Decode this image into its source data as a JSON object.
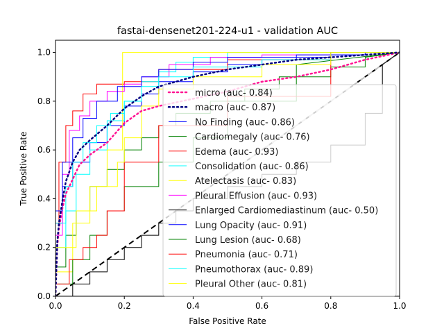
{
  "chart_data": {
    "type": "line",
    "title": "fastai-densenet201-224-u1 - validation AUC",
    "xlabel": "False Positive Rate",
    "ylabel": "True Positive Rate",
    "xlim": [
      0,
      1
    ],
    "ylim": [
      0,
      1.05
    ],
    "xticks": [
      "0.0",
      "0.2",
      "0.4",
      "0.6",
      "0.8",
      "1.0"
    ],
    "yticks": [
      "0.0",
      "0.2",
      "0.4",
      "0.6",
      "0.8",
      "1.0"
    ],
    "grid": false,
    "legend_position": "lower-right",
    "series": [
      {
        "name": "micro (auc- 0.84)",
        "color": "#ff1493",
        "style": "dotted",
        "x": [
          0,
          0.005,
          0.01,
          0.02,
          0.03,
          0.05,
          0.07,
          0.1,
          0.15,
          0.2,
          0.25,
          0.3,
          0.4,
          0.5,
          0.6,
          0.7,
          0.8,
          0.9,
          1.0
        ],
        "y": [
          0,
          0.2,
          0.28,
          0.36,
          0.42,
          0.48,
          0.54,
          0.58,
          0.63,
          0.71,
          0.76,
          0.78,
          0.81,
          0.84,
          0.88,
          0.9,
          0.93,
          0.97,
          1.0
        ]
      },
      {
        "name": "macro (auc- 0.87)",
        "color": "#000080",
        "style": "dotted",
        "x": [
          0,
          0.005,
          0.01,
          0.02,
          0.03,
          0.05,
          0.07,
          0.1,
          0.15,
          0.2,
          0.25,
          0.3,
          0.4,
          0.5,
          0.6,
          0.7,
          0.8,
          0.9,
          1.0
        ],
        "y": [
          0,
          0.22,
          0.3,
          0.39,
          0.47,
          0.55,
          0.6,
          0.64,
          0.7,
          0.77,
          0.82,
          0.86,
          0.9,
          0.93,
          0.95,
          0.97,
          0.98,
          0.99,
          1.0
        ]
      },
      {
        "name": "No Finding (auc- 0.86)",
        "color": "#0000ff",
        "style": "solid",
        "x": [
          0,
          0,
          0.02,
          0.02,
          0.05,
          0.05,
          0.1,
          0.1,
          0.15,
          0.15,
          0.2,
          0.2,
          0.25,
          0.25,
          0.3,
          0.3,
          0.4,
          0.4,
          0.5,
          0.5,
          0.6,
          0.6,
          0.7,
          0.7,
          0.8,
          0.8,
          0.9,
          0.9,
          1.0
        ],
        "y": [
          0,
          0.3,
          0.3,
          0.45,
          0.45,
          0.55,
          0.55,
          0.63,
          0.63,
          0.7,
          0.7,
          0.78,
          0.78,
          0.83,
          0.83,
          0.88,
          0.88,
          0.92,
          0.92,
          0.95,
          0.95,
          0.97,
          0.97,
          0.98,
          0.98,
          0.99,
          0.99,
          1.0,
          1.0
        ]
      },
      {
        "name": "Cardiomegaly (auc- 0.76)",
        "color": "#008000",
        "style": "solid",
        "x": [
          0,
          0,
          0.03,
          0.03,
          0.06,
          0.06,
          0.1,
          0.1,
          0.15,
          0.15,
          0.2,
          0.2,
          0.25,
          0.25,
          0.3,
          0.3,
          0.35,
          0.35,
          0.45,
          0.45,
          0.55,
          0.55,
          0.65,
          0.65,
          0.8,
          0.8,
          0.9,
          0.9,
          1.0
        ],
        "y": [
          0,
          0.12,
          0.12,
          0.25,
          0.25,
          0.35,
          0.35,
          0.45,
          0.45,
          0.52,
          0.52,
          0.6,
          0.6,
          0.65,
          0.65,
          0.7,
          0.7,
          0.75,
          0.75,
          0.8,
          0.8,
          0.85,
          0.85,
          0.9,
          0.9,
          0.94,
          0.94,
          0.98,
          1.0
        ]
      },
      {
        "name": "Edema (auc- 0.93)",
        "color": "#ff0000",
        "style": "solid",
        "x": [
          0,
          0,
          0.01,
          0.01,
          0.03,
          0.03,
          0.05,
          0.05,
          0.08,
          0.08,
          0.12,
          0.12,
          0.2,
          0.2,
          0.3,
          0.3,
          0.5,
          0.5,
          0.8,
          0.8,
          1.0
        ],
        "y": [
          0,
          0.3,
          0.3,
          0.55,
          0.55,
          0.7,
          0.7,
          0.76,
          0.76,
          0.83,
          0.83,
          0.87,
          0.87,
          0.88,
          0.88,
          0.93,
          0.93,
          0.97,
          0.97,
          1.0,
          1.0
        ]
      },
      {
        "name": "Consolidation (auc- 0.86)",
        "color": "#00ffff",
        "style": "solid",
        "x": [
          0,
          0,
          0.03,
          0.03,
          0.06,
          0.06,
          0.1,
          0.1,
          0.15,
          0.15,
          0.2,
          0.2,
          0.25,
          0.25,
          0.3,
          0.3,
          0.35,
          0.35,
          0.4,
          0.4,
          0.5,
          0.5,
          0.7,
          0.7,
          1.0
        ],
        "y": [
          0,
          0.2,
          0.2,
          0.35,
          0.35,
          0.5,
          0.5,
          0.6,
          0.6,
          0.72,
          0.72,
          0.8,
          0.8,
          0.88,
          0.88,
          0.92,
          0.92,
          0.96,
          0.96,
          0.98,
          0.98,
          1.0,
          1.0,
          1.0,
          1.0
        ]
      },
      {
        "name": "Atelectasis (auc- 0.83)",
        "color": "#ffff00",
        "style": "solid",
        "x": [
          0,
          0,
          0.05,
          0.05,
          0.1,
          0.1,
          0.15,
          0.15,
          0.195,
          0.195,
          0.3,
          0.3,
          1.0
        ],
        "y": [
          0,
          0.1,
          0.1,
          0.3,
          0.3,
          0.45,
          0.45,
          0.6,
          0.6,
          1.0,
          1.0,
          1.0,
          1.0
        ]
      },
      {
        "name": "Pleural Effusion (auc- 0.93)",
        "color": "#ff00ff",
        "style": "solid",
        "x": [
          0,
          0,
          0.02,
          0.02,
          0.04,
          0.04,
          0.07,
          0.07,
          0.1,
          0.1,
          0.15,
          0.15,
          0.2,
          0.2,
          0.25,
          0.25,
          0.33,
          0.33,
          0.45,
          0.45,
          0.6,
          0.6,
          0.8,
          0.8,
          1.0
        ],
        "y": [
          0,
          0.25,
          0.25,
          0.5,
          0.5,
          0.68,
          0.68,
          0.74,
          0.74,
          0.8,
          0.8,
          0.84,
          0.84,
          0.87,
          0.87,
          0.9,
          0.9,
          0.95,
          0.95,
          0.98,
          0.98,
          0.99,
          0.99,
          1.0,
          1.0
        ]
      },
      {
        "name": "Enlarged Cardiomediastinum (auc- 0.50)",
        "color": "#000000",
        "style": "solid",
        "x": [
          0,
          0.05,
          0.05,
          0.1,
          0.1,
          0.15,
          0.15,
          0.2,
          0.2,
          0.25,
          0.25,
          0.3,
          0.3,
          0.35,
          0.35,
          0.4,
          0.4,
          0.5,
          0.5,
          0.6,
          0.6,
          0.7,
          0.7,
          0.8,
          0.8,
          0.9,
          0.9,
          0.95,
          0.95,
          1.0
        ],
        "y": [
          0,
          0,
          0.05,
          0.05,
          0.1,
          0.1,
          0.15,
          0.15,
          0.2,
          0.2,
          0.25,
          0.25,
          0.3,
          0.3,
          0.35,
          0.35,
          0.4,
          0.4,
          0.45,
          0.45,
          0.5,
          0.5,
          0.55,
          0.55,
          0.62,
          0.62,
          0.75,
          0.75,
          0.95,
          1.0
        ]
      },
      {
        "name": "Lung Opacity (auc- 0.91)",
        "color": "#0000ff",
        "style": "solid",
        "x": [
          0,
          0,
          0.02,
          0.02,
          0.05,
          0.05,
          0.08,
          0.08,
          0.12,
          0.12,
          0.18,
          0.18,
          0.25,
          0.25,
          0.3,
          0.3,
          0.4,
          0.4,
          0.5,
          0.5,
          0.7,
          0.7,
          0.9,
          0.9,
          1.0
        ],
        "y": [
          0,
          0.35,
          0.35,
          0.55,
          0.55,
          0.65,
          0.65,
          0.73,
          0.73,
          0.8,
          0.8,
          0.86,
          0.86,
          0.9,
          0.9,
          0.93,
          0.93,
          0.96,
          0.96,
          0.98,
          0.98,
          0.99,
          0.99,
          1.0,
          1.0
        ]
      },
      {
        "name": "Lung Lesion (auc- 0.68)",
        "color": "#008000",
        "style": "solid",
        "x": [
          0,
          0,
          0.05,
          0.05,
          0.1,
          0.1,
          0.15,
          0.15,
          0.2,
          0.2,
          0.3,
          0.3,
          0.4,
          0.4,
          0.5,
          0.5,
          0.7,
          0.7,
          1.0
        ],
        "y": [
          0,
          0.05,
          0.05,
          0.15,
          0.15,
          0.25,
          0.25,
          0.35,
          0.35,
          0.45,
          0.45,
          0.55,
          0.55,
          0.65,
          0.65,
          0.8,
          0.8,
          0.95,
          1.0
        ]
      },
      {
        "name": "Pneumonia (auc- 0.71)",
        "color": "#ff0000",
        "style": "solid",
        "x": [
          0,
          0,
          0.04,
          0.04,
          0.08,
          0.08,
          0.12,
          0.12,
          0.15,
          0.15,
          0.2,
          0.2,
          0.3,
          0.3,
          0.5,
          0.5,
          0.8,
          0.8,
          1.0
        ],
        "y": [
          0,
          0.05,
          0.05,
          0.15,
          0.15,
          0.2,
          0.2,
          0.25,
          0.25,
          0.35,
          0.35,
          0.55,
          0.55,
          0.7,
          0.7,
          0.82,
          0.82,
          1.0,
          1.0
        ]
      },
      {
        "name": "Pneumothorax (auc- 0.89)",
        "color": "#00ffff",
        "style": "solid",
        "x": [
          0,
          0,
          0.03,
          0.03,
          0.05,
          0.05,
          0.08,
          0.08,
          0.12,
          0.12,
          0.16,
          0.16,
          0.2,
          0.2,
          0.25,
          0.25,
          0.3,
          0.3,
          0.4,
          0.4,
          0.6,
          0.6,
          0.8,
          0.8,
          1.0
        ],
        "y": [
          0,
          0.3,
          0.3,
          0.45,
          0.45,
          0.55,
          0.55,
          0.63,
          0.63,
          0.7,
          0.7,
          0.75,
          0.75,
          0.8,
          0.8,
          0.86,
          0.86,
          0.9,
          0.9,
          0.94,
          0.94,
          0.97,
          0.97,
          1.0,
          1.0
        ]
      },
      {
        "name": "Pleural Other (auc- 0.81)",
        "color": "#ffff00",
        "style": "solid",
        "x": [
          0,
          0,
          0.06,
          0.06,
          0.12,
          0.12,
          0.18,
          0.18,
          0.2,
          0.2,
          0.25,
          0.25,
          0.3,
          0.3,
          0.4,
          0.4,
          0.6,
          0.6,
          0.8,
          0.8,
          1.0
        ],
        "y": [
          0,
          0.2,
          0.2,
          0.35,
          0.35,
          0.45,
          0.45,
          0.55,
          0.55,
          0.65,
          0.65,
          0.78,
          0.78,
          0.85,
          0.85,
          0.9,
          0.9,
          0.95,
          0.95,
          1.0,
          1.0
        ]
      }
    ],
    "reference_lines": [
      {
        "role": "chance",
        "color": "#000000",
        "style": "dashed",
        "x": [
          0,
          1
        ],
        "y": [
          0,
          1
        ]
      },
      {
        "role": "chance-gray",
        "color": "#c0c0c0",
        "style": "dashed",
        "x": [
          0.33,
          1
        ],
        "y": [
          0.33,
          1
        ]
      }
    ]
  }
}
